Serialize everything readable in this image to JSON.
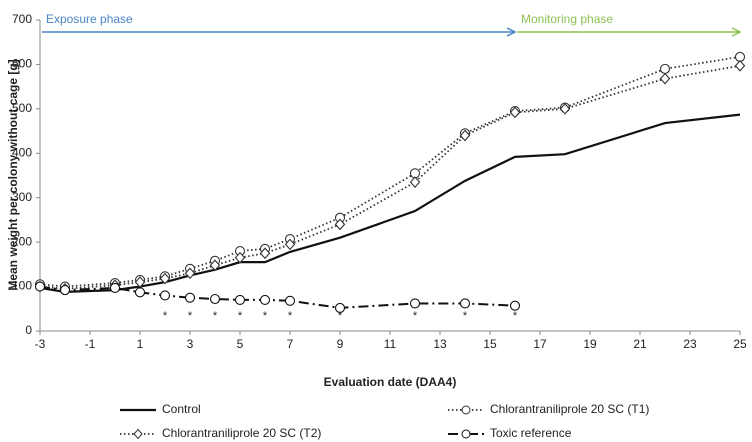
{
  "chart_data": {
    "type": "line",
    "x_label": "Evaluation date (DAA4)",
    "y_label": "Mean weight per colony without cage [g]",
    "xlim": [
      -3,
      25
    ],
    "xticks": [
      -3,
      -1,
      1,
      3,
      5,
      7,
      9,
      11,
      13,
      15,
      17,
      19,
      21,
      23,
      25
    ],
    "ylim": [
      0,
      700
    ],
    "yticks": [
      0,
      100,
      200,
      300,
      400,
      500,
      600,
      700
    ],
    "series": [
      {
        "name": "Control",
        "color": "#111111",
        "dash": "solid",
        "marker": "none",
        "x": [
          -3,
          -2,
          0,
          1,
          2,
          3,
          4,
          5,
          6,
          7,
          9,
          12,
          14,
          16,
          18,
          22,
          25
        ],
        "values": [
          97,
          88,
          92,
          100,
          110,
          125,
          138,
          155,
          155,
          178,
          210,
          270,
          338,
          392,
          398,
          468,
          487
        ]
      },
      {
        "name": "Chlorantraniliprole 20 SC (T1)",
        "color": "#333333",
        "dash": "dotted",
        "marker": "circle",
        "x": [
          -3,
          -2,
          0,
          1,
          2,
          3,
          4,
          5,
          6,
          7,
          9,
          12,
          14,
          16,
          18,
          22,
          25
        ],
        "values": [
          105,
          100,
          108,
          115,
          123,
          140,
          158,
          180,
          185,
          207,
          255,
          355,
          445,
          495,
          503,
          590,
          617
        ]
      },
      {
        "name": "Chlorantraniliprole 20 SC (T2)",
        "color": "#333333",
        "dash": "dotted",
        "marker": "diamond",
        "x": [
          -3,
          -2,
          0,
          1,
          2,
          3,
          4,
          5,
          6,
          7,
          9,
          12,
          14,
          16,
          18,
          22,
          25
        ],
        "values": [
          100,
          95,
          103,
          110,
          118,
          130,
          148,
          165,
          175,
          195,
          240,
          335,
          440,
          492,
          500,
          568,
          597
        ]
      },
      {
        "name": "Toxic reference",
        "color": "#111111",
        "dash": "dashdot",
        "marker": "circle",
        "x": [
          -3,
          -2,
          0,
          1,
          2,
          3,
          4,
          5,
          6,
          7,
          9,
          12,
          14,
          16
        ],
        "values": [
          100,
          92,
          97,
          87,
          80,
          75,
          72,
          70,
          70,
          68,
          52,
          62,
          62,
          57
        ]
      }
    ],
    "phases": [
      {
        "text": "Exposure phase",
        "x": [
          -3,
          16
        ],
        "color": "#4a86c8"
      },
      {
        "text": "Monitoring phase",
        "x": [
          16,
          25
        ],
        "color": "#8cc152"
      }
    ],
    "significance": {
      "label": "*",
      "x": [
        2,
        3,
        4,
        5,
        6,
        7,
        9,
        12,
        14,
        16
      ]
    }
  }
}
